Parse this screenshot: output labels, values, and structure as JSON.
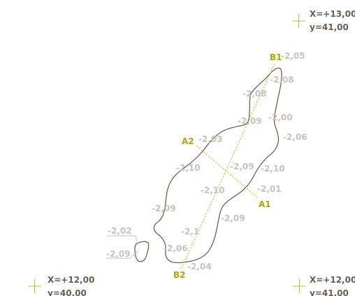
{
  "corners": {
    "top_right": {
      "x_label": "X=+13,00",
      "y_label": "y=41,00"
    },
    "bottom_left": {
      "x_label": "X=+12,00",
      "y_label": "y=40.00"
    },
    "bottom_right": {
      "x_label": "X=+12,00",
      "y_label": "y=41.00"
    }
  },
  "sections": {
    "a1": "A1",
    "a2": "A2",
    "b1": "B1",
    "b2": "B2"
  },
  "elevations": {
    "e1": "-2,05",
    "e2": "-2,08",
    "e3": "-2,08",
    "e4": "-2,09",
    "e5": "-2,00",
    "e6": "-2,06",
    "e7": "-2,03",
    "e8": "-2,10",
    "e9": "-2,09",
    "e10": "-2,10",
    "e11": "-2,10",
    "e12": "-2,01",
    "e13": "-2,09",
    "e14": "-2,09",
    "e15": "-2,1",
    "e16": "-2,06",
    "e17": "-2,04",
    "e18": "-2,02",
    "e19": "-2,09"
  },
  "colors": {
    "outline": "#6e6055",
    "section_line": "#c9bd1b",
    "section_label": "#b3a30a",
    "elevation": "#c9c2b9",
    "coordinate": "#6b5d4f",
    "crosshair": "#c6b82e"
  }
}
